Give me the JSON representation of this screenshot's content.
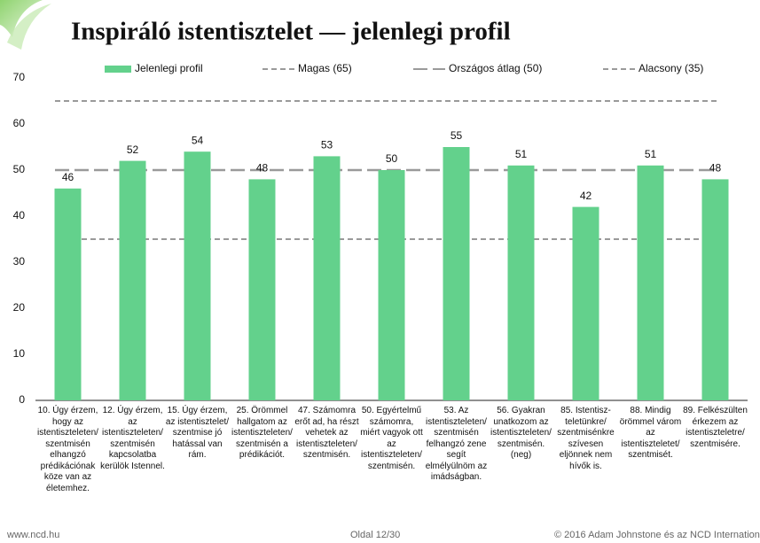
{
  "chart_data": {
    "type": "bar",
    "title": "Inspiráló istentisztelet — jelenlegi profil",
    "categories": [
      "10. Úgy érzem, hogy az istentiszteleten/ szentmisén elhangzó prédikációnak köze van az életemhez.",
      "12. Úgy érzem, az istentiszteleten/ szentmisén kapcsolatba kerülök Istennel.",
      "15. Úgy érzem, az istentisztelet/ szentmise jó hatással van rám.",
      "25. Örömmel hallgatom az istentiszteleten/ szentmisén a prédikációt.",
      "47. Számomra erőt ad, ha részt vehetek az istentiszteleten/ szentmisén.",
      "50. Egyértelmű számomra, miért vagyok ott az istentiszteleten/ szentmisén.",
      "53. Az istentiszteleten/ szentmisén felhangzó zene segít elmélyülnöm az imádságban.",
      "56. Gyakran unatkozom az istentiszteleten/ szentmisén. (neg)",
      "85. Istentisz-teletünkre/ szentmisénkre szívesen eljönnek nem hívők is.",
      "88. Mindig örömmel várom az istentiszteletet/ szentmisét.",
      "89. Felkészülten érkezem az istentiszteletre/ szentmisére."
    ],
    "series": [
      {
        "name": "Jelenlegi profil",
        "color": "#63d18c",
        "values": [
          46,
          52,
          54,
          48,
          53,
          50,
          55,
          51,
          42,
          51,
          48
        ]
      }
    ],
    "reference_lines": [
      {
        "name": "Magas (65)",
        "value": 65,
        "color": "#9a9a9a"
      },
      {
        "name": "Országos átlag (50)",
        "value": 50,
        "color": "#9a9a9a"
      },
      {
        "name": "Alacsony (35)",
        "value": 35,
        "color": "#9a9a9a"
      }
    ],
    "ylim": [
      0,
      70
    ],
    "yticks": [
      0,
      10,
      20,
      30,
      40,
      50,
      60,
      70
    ]
  },
  "footer": {
    "left": "www.ncd.hu",
    "center": "Oldal 12/30",
    "right": "© 2016 Adam Johnstone és az NCD Internation"
  }
}
